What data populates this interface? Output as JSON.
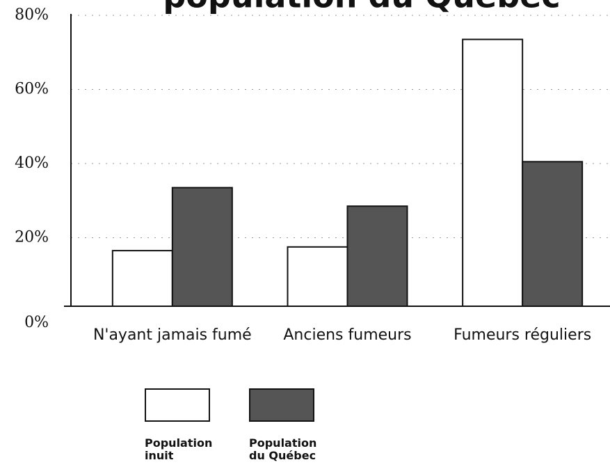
{
  "chart_data": {
    "type": "bar",
    "title": "population du Québec",
    "categories": [
      "N'ayant jamais fumé",
      "Anciens fumeurs",
      "Fumeurs réguliers"
    ],
    "series": [
      {
        "name": "Population inuit",
        "color": "#ffffff",
        "values": [
          15,
          16,
          72
        ]
      },
      {
        "name": "Population du Québec",
        "color": "#555555",
        "values": [
          32,
          27,
          39
        ]
      }
    ],
    "ylim": [
      0,
      80
    ],
    "yticks": [
      {
        "value": 0,
        "label": "0%"
      },
      {
        "value": 20,
        "label": "20%"
      },
      {
        "value": 40,
        "label": "40%"
      },
      {
        "value": 60,
        "label": "60%"
      },
      {
        "value": 80,
        "label": "80%"
      }
    ],
    "grid": true,
    "legend": "bottom"
  }
}
